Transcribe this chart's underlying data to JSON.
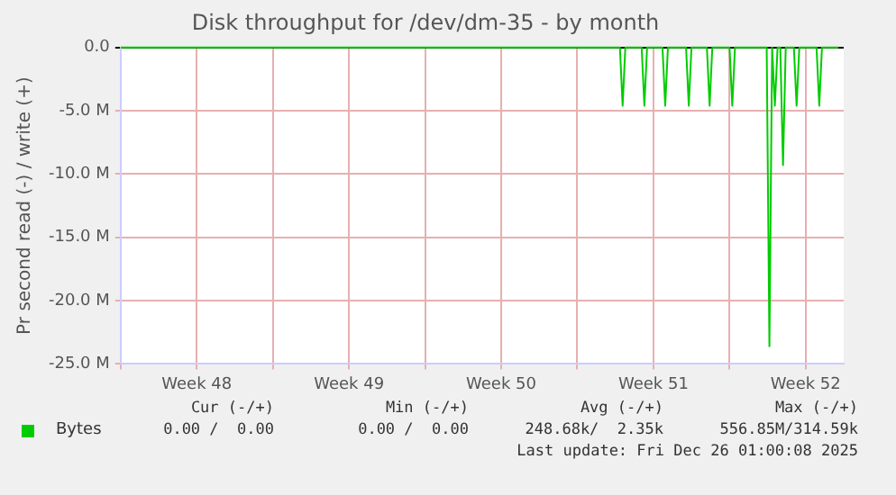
{
  "chart_data": {
    "type": "line",
    "title": "Disk throughput for /dev/dm-35 - by month",
    "ylabel": "Pr second read (-) / write (+)",
    "series": [
      {
        "name": "Bytes",
        "color": "#00cc00",
        "x": [
          "2025-11-24",
          "2025-12-16T23:00",
          "2025-12-17T02:00",
          "2025-12-17T05:00",
          "2025-12-17T23:00",
          "2025-12-18T02:00",
          "2025-12-18T05:00",
          "2025-12-18T22:00",
          "2025-12-19T01:00",
          "2025-12-19T04:00",
          "2025-12-20T00:00",
          "2025-12-20T03:00",
          "2025-12-20T06:00",
          "2025-12-20T23:00",
          "2025-12-21T02:00",
          "2025-12-21T05:00",
          "2025-12-22T00:00",
          "2025-12-22T03:00",
          "2025-12-22T06:00",
          "2025-12-23T17:00",
          "2025-12-23T20:00",
          "2025-12-23T23:00",
          "2025-12-24T02:00",
          "2025-12-24T05:00",
          "2025-12-24T08:00",
          "2025-12-24T11:00",
          "2025-12-24T14:00",
          "2025-12-24T23:00",
          "2025-12-25T02:00",
          "2025-12-25T05:00",
          "2025-12-26T00:00",
          "2025-12-26T03:00",
          "2025-12-26T06:00",
          "2025-12-27T00:00"
        ],
        "values": [
          0,
          0,
          -4.6,
          0,
          0,
          -4.6,
          0,
          0,
          -4.6,
          0,
          0,
          -4.6,
          0,
          0,
          -4.6,
          0,
          0,
          -4.6,
          0,
          0,
          -23.6,
          0,
          -4.6,
          0,
          0,
          -9.3,
          0,
          0,
          -4.6,
          0,
          0,
          -4.6,
          0,
          0
        ]
      }
    ],
    "xlim": [
      "2025-11-24",
      "2025-12-27T06:00"
    ],
    "xticks": [
      {
        "value": "2025-11-24",
        "label": null
      },
      {
        "value": "2025-11-27T12:00",
        "label": "Week 48"
      },
      {
        "value": "2025-12-01",
        "label": null
      },
      {
        "value": "2025-12-04T12:00",
        "label": "Week 49"
      },
      {
        "value": "2025-12-08",
        "label": null
      },
      {
        "value": "2025-12-11T12:00",
        "label": "Week 50"
      },
      {
        "value": "2025-12-15",
        "label": null
      },
      {
        "value": "2025-12-18T12:00",
        "label": "Week 51"
      },
      {
        "value": "2025-12-22",
        "label": null
      },
      {
        "value": "2025-12-25T12:00",
        "label": "Week 52"
      }
    ],
    "ylim": [
      -25,
      0
    ],
    "yticks": [
      {
        "value": -25,
        "label": "-25.0 M"
      },
      {
        "value": -20,
        "label": "-20.0 M"
      },
      {
        "value": -15,
        "label": "-15.0 M"
      },
      {
        "value": -10,
        "label": "-10.0 M"
      },
      {
        "value": -5,
        "label": "-5.0 M"
      },
      {
        "value": 0,
        "label": "0.0"
      }
    ],
    "grid": true,
    "legend": "bottom left",
    "marker": "none",
    "line_style": "solid",
    "annotations": [
      "Cur (-/+)",
      "Min (-/+)",
      "Avg (-/+)",
      "Max (-/+)",
      "0.00 /  0.00",
      "0.00 /  0.00",
      "248.68k/  2.35k",
      "556.85M/314.59k",
      "Last update: Fri Dec 26 01:00:08 2025"
    ]
  }
}
